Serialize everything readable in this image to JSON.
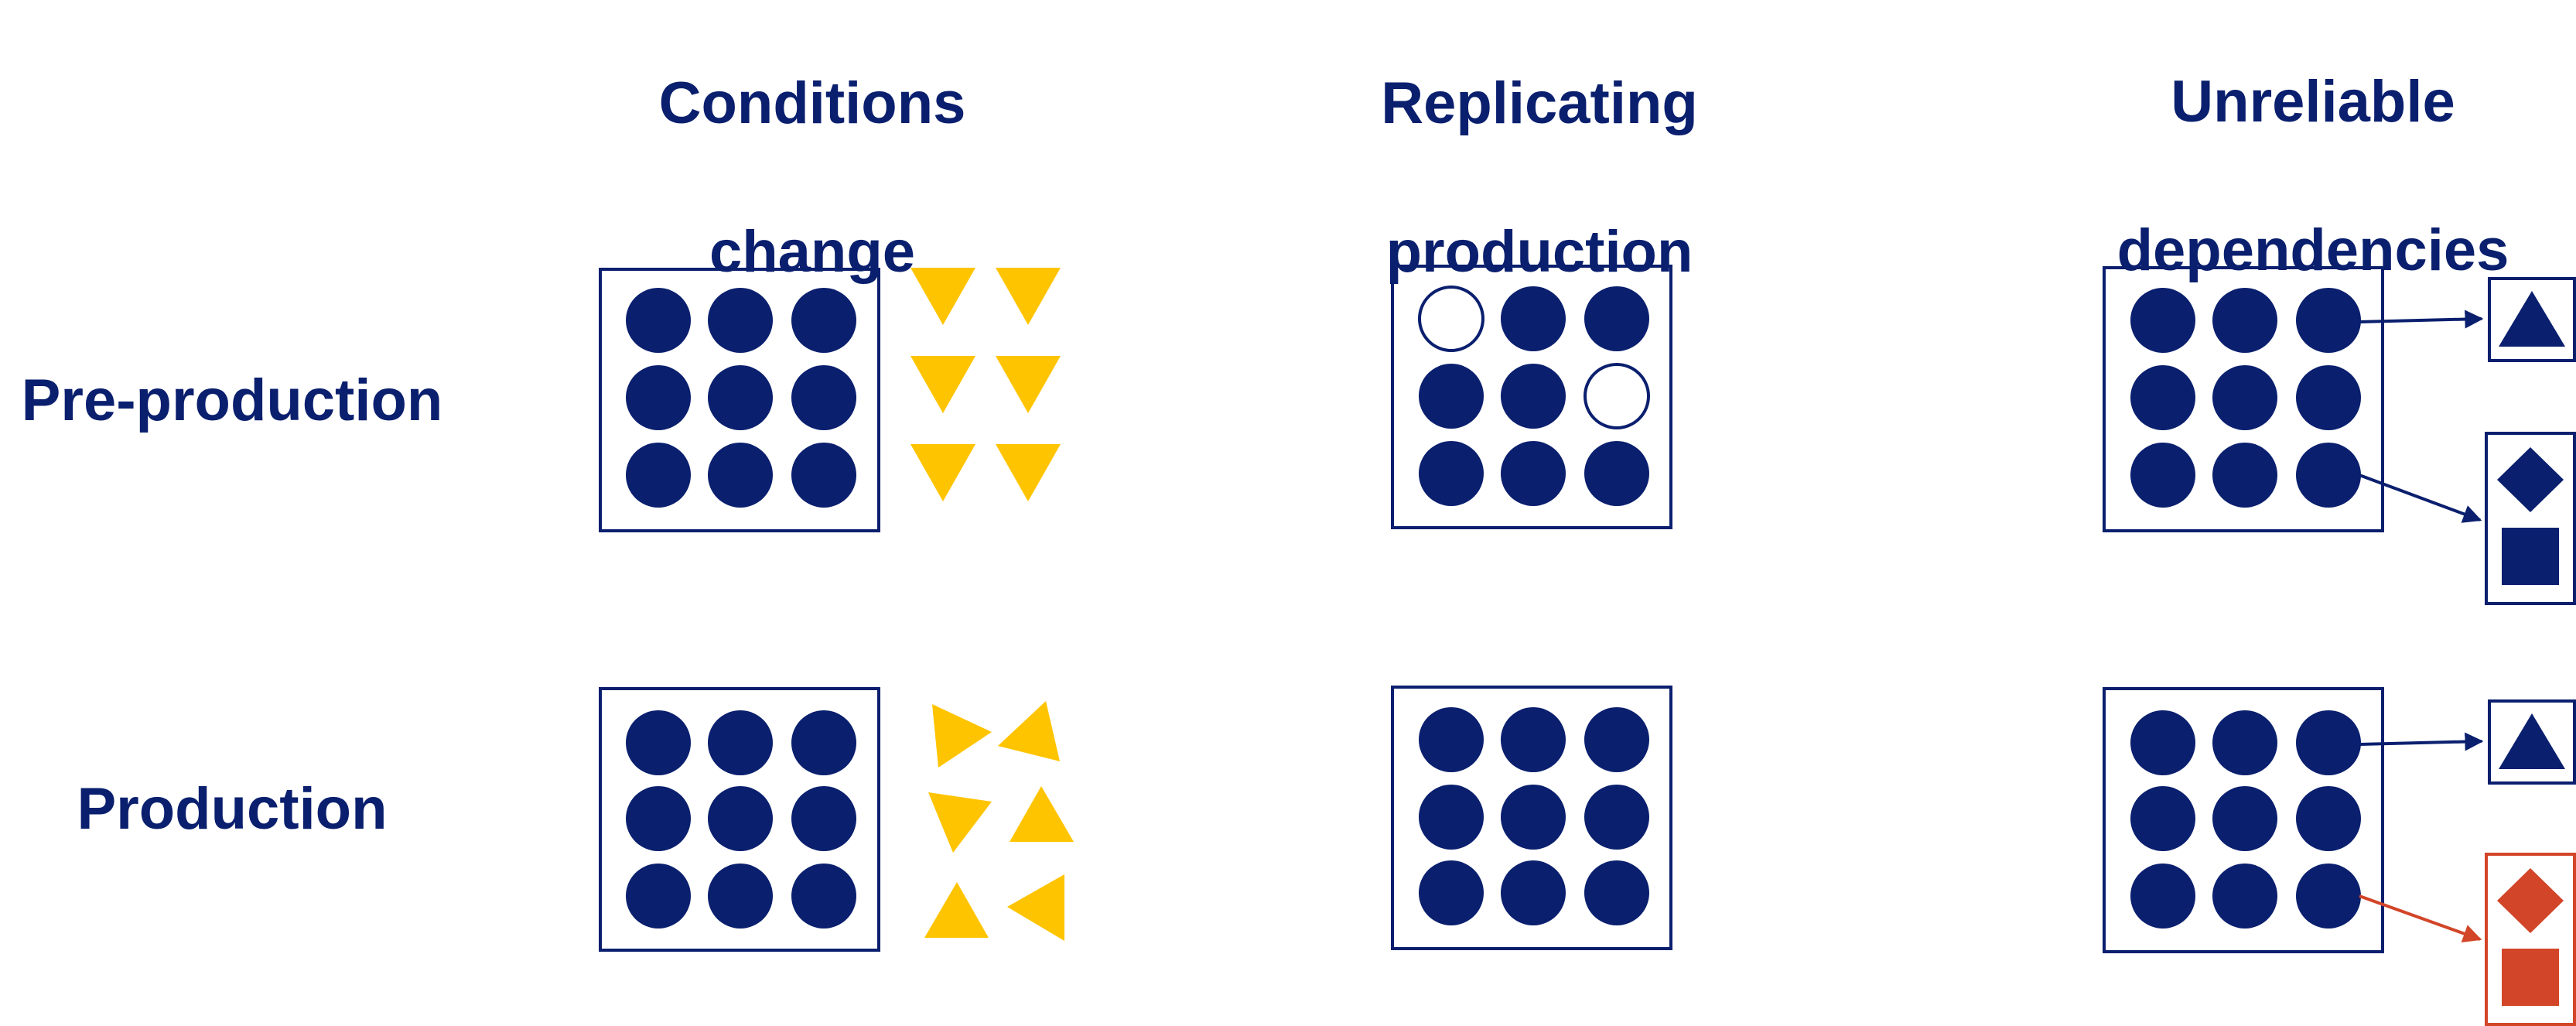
{
  "columns": [
    {
      "line1": "Conditions",
      "line2": "change"
    },
    {
      "line1": "Replicating",
      "line2": "production"
    },
    {
      "line1": "Unreliable",
      "line2": "dependencies"
    }
  ],
  "rows": [
    {
      "label": "Pre-production"
    },
    {
      "label": "Production"
    }
  ],
  "colors": {
    "primary": "#0a1f6e",
    "accent_yellow": "#ffc400",
    "failure_orange": "#d24528",
    "background": "#ffffff"
  }
}
